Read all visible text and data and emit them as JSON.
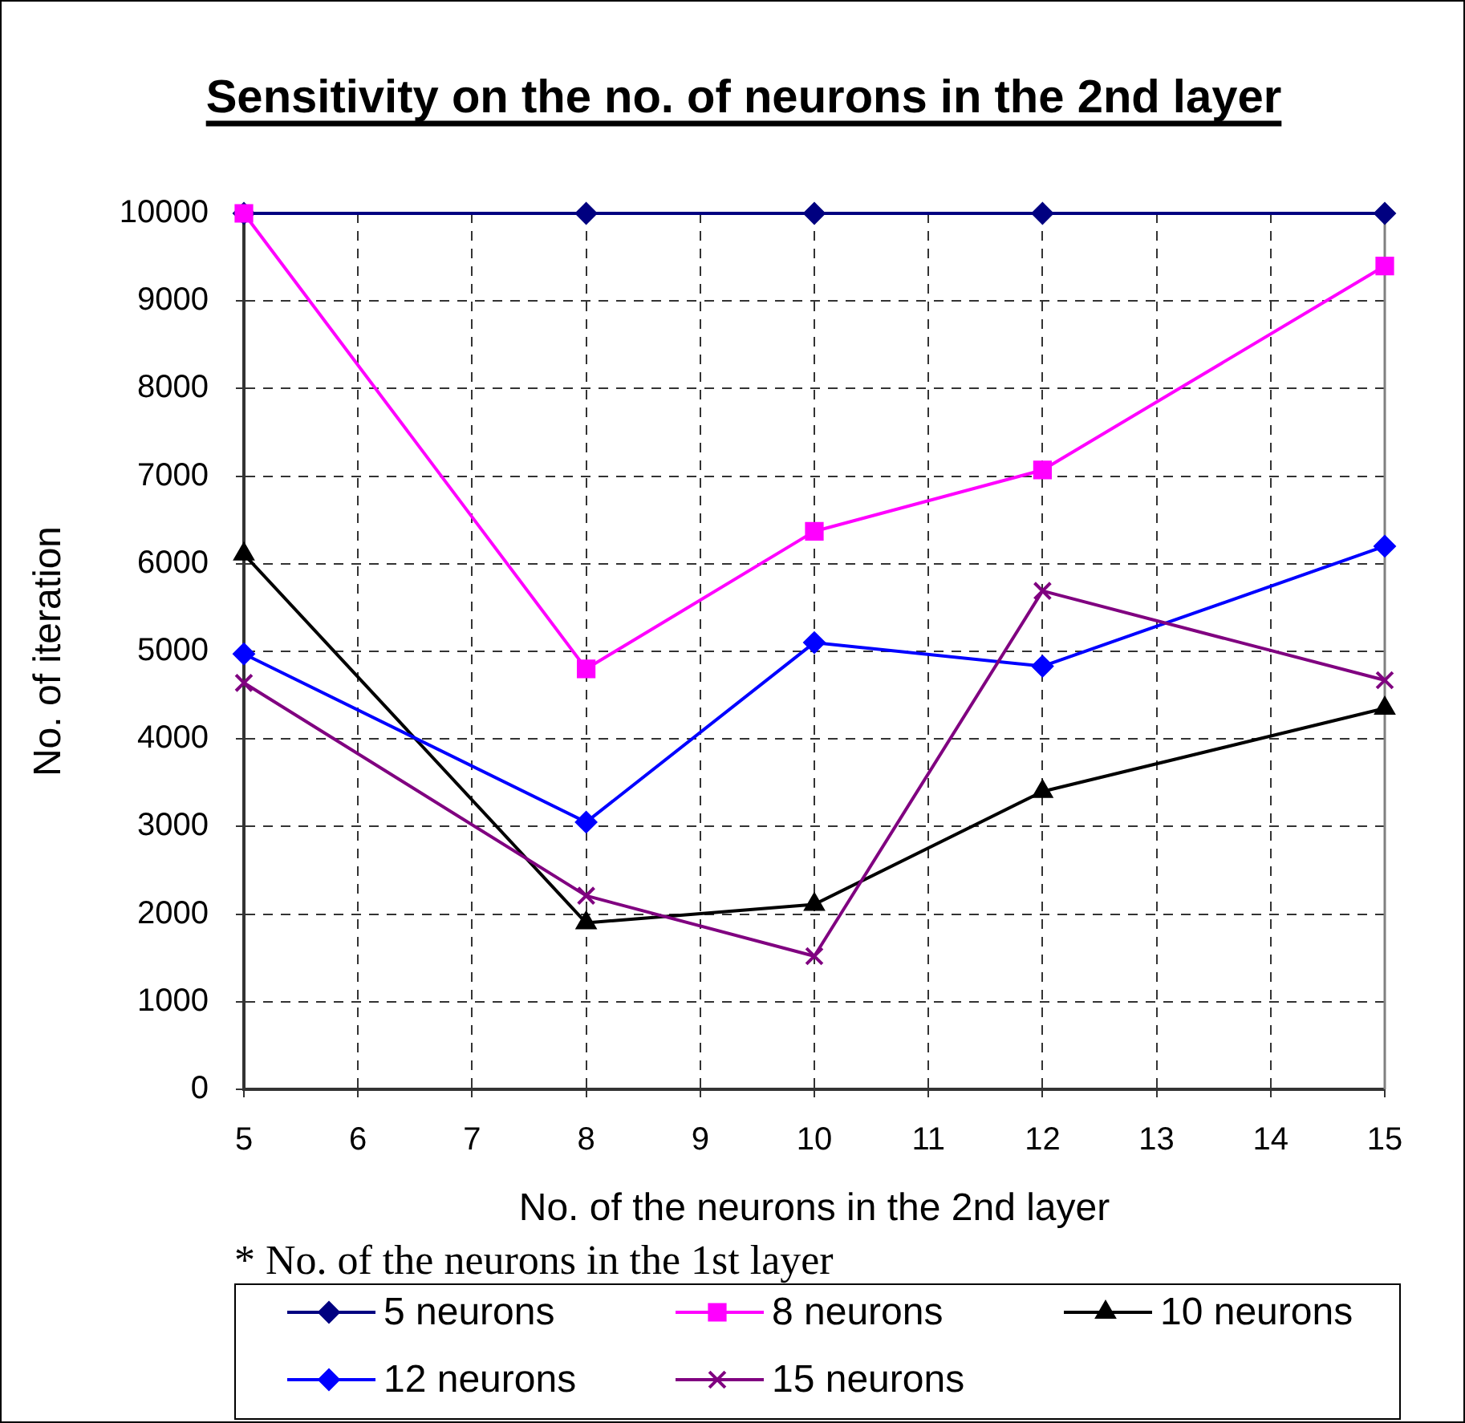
{
  "chart_data": {
    "type": "line",
    "title": "Sensitivity on the no. of neurons in the 2nd layer",
    "xlabel": "No. of the neurons in the 2nd layer",
    "ylabel": "No. of iteration",
    "legend_title": "* No. of the neurons in the 1st layer",
    "x": [
      5,
      8,
      10,
      12,
      15
    ],
    "xlim": [
      5,
      15
    ],
    "xticks": [
      5,
      6,
      7,
      8,
      9,
      10,
      11,
      12,
      13,
      14,
      15
    ],
    "ylim": [
      0,
      10000
    ],
    "yticks": [
      0,
      1000,
      2000,
      3000,
      4000,
      5000,
      6000,
      7000,
      8000,
      9000,
      10000
    ],
    "grid": true,
    "legend": "bottom",
    "line_style": "solid",
    "series": [
      {
        "name": "5 neurons",
        "color": "#000080",
        "marker": "diamond",
        "values": [
          10000,
          10000,
          10000,
          10000,
          10000
        ]
      },
      {
        "name": "8 neurons",
        "color": "#ff00ff",
        "marker": "square",
        "values": [
          10000,
          4800,
          6370,
          7070,
          9400
        ]
      },
      {
        "name": "10 neurons",
        "color": "#000000",
        "marker": "triangle",
        "values": [
          6110,
          1900,
          2110,
          3400,
          4350
        ]
      },
      {
        "name": "12 neurons",
        "color": "#0000ff",
        "marker": "diamond",
        "values": [
          4970,
          3050,
          5100,
          4830,
          6200
        ]
      },
      {
        "name": "15 neurons",
        "color": "#800080",
        "marker": "cross",
        "values": [
          4640,
          2210,
          1520,
          5690,
          4670
        ]
      }
    ]
  }
}
